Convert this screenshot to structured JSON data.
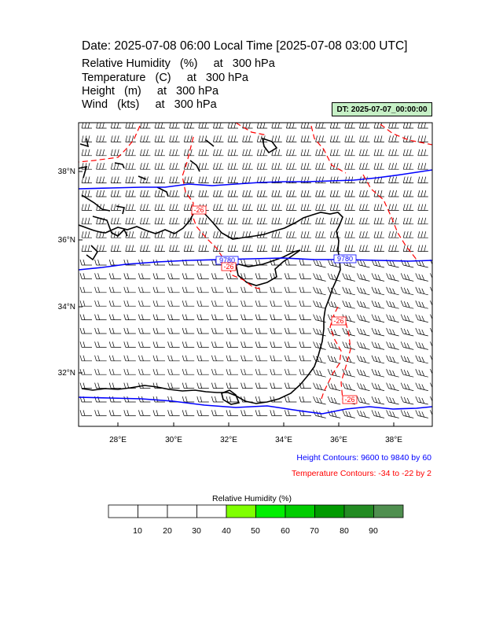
{
  "header": {
    "title": "Date: 2025-07-08  06:00 Local Time [2025-07-08  03:00 UTC]",
    "fields": [
      "Relative Humidity   (%)     at   300 hPa",
      "Temperature   (C)     at   300 hPa",
      "Height   (m)     at   300 hPa",
      "Wind   (kts)     at   300 hPa"
    ],
    "dt_badge": "DT: 2025-07-07_00:00:00"
  },
  "map": {
    "lat_labels": [
      "38°N",
      "36°N",
      "34°N",
      "32°N"
    ],
    "lon_labels": [
      "28°E",
      "30°E",
      "32°E",
      "34°E",
      "36°E",
      "38°E"
    ],
    "height_contour_labels": [
      "9780",
      "9780"
    ],
    "temperature_contour_labels": [
      "-26",
      "-26",
      "-26",
      "-26"
    ],
    "height_contour_color": "#0000ff",
    "temperature_contour_color": "#ff0000",
    "coastline_color": "#000000",
    "wind_barb_color": "#000000"
  },
  "notes": {
    "height_contours": "Height Contours: 9600 to 9840 by 60",
    "temperature_contours": "Temperature Contours: -34 to -22 by 2"
  },
  "colorbar": {
    "title": "Relative Humidity  (%)",
    "labels": [
      "10",
      "20",
      "30",
      "40",
      "50",
      "60",
      "70",
      "80",
      "90"
    ],
    "colors": [
      "#ffffff",
      "#ffffff",
      "#ffffff",
      "#ffffff",
      "#7fff00",
      "#00ef00",
      "#00cd00",
      "#009a00",
      "#228b22",
      "#4f8f4f"
    ]
  }
}
